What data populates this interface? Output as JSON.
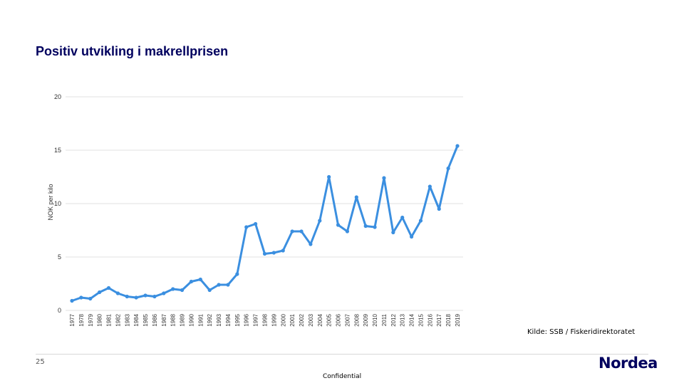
{
  "slide": {
    "title": "Positiv utvikling i makrellprisen",
    "source": "Kilde: SSB / Fiskeridirektoratet",
    "page_number": "25",
    "logo_text": "Nordea",
    "footer": "Confidential"
  },
  "colors": {
    "title": "#00005e",
    "line": "#3b8fe0",
    "grid": "#e0e0e0"
  },
  "chart_data": {
    "type": "line",
    "ylabel": "NOK per kilo",
    "xlabel": "",
    "ylim": [
      0,
      20
    ],
    "yticks": [
      0,
      5,
      10,
      15,
      20
    ],
    "grid": true,
    "x": [
      "1977",
      "1978",
      "1979",
      "1980",
      "1981",
      "1982",
      "1983",
      "1984",
      "1985",
      "1986",
      "1987",
      "1988",
      "1989",
      "1990",
      "1991",
      "1992",
      "1993",
      "1994",
      "1995",
      "1996",
      "1997",
      "1998",
      "1999",
      "2000",
      "2001",
      "2002",
      "2003",
      "2004",
      "2005",
      "2006",
      "2007",
      "2008",
      "2009",
      "2010",
      "2011",
      "2012",
      "2013",
      "2014",
      "2015",
      "2016",
      "2017",
      "2018",
      "2019"
    ],
    "series": [
      {
        "values": [
          0.9,
          1.2,
          1.1,
          1.7,
          2.1,
          1.6,
          1.3,
          1.2,
          1.4,
          1.3,
          1.6,
          2.0,
          1.9,
          2.7,
          2.9,
          1.9,
          2.4,
          2.4,
          3.4,
          7.8,
          8.1,
          5.3,
          5.4,
          5.6,
          7.4,
          7.4,
          6.2,
          8.4,
          12.5,
          8.0,
          7.4,
          10.6,
          7.9,
          7.8,
          12.4,
          7.3,
          8.7,
          6.9,
          8.4,
          11.6,
          9.5,
          13.3,
          15.4
        ]
      }
    ]
  }
}
